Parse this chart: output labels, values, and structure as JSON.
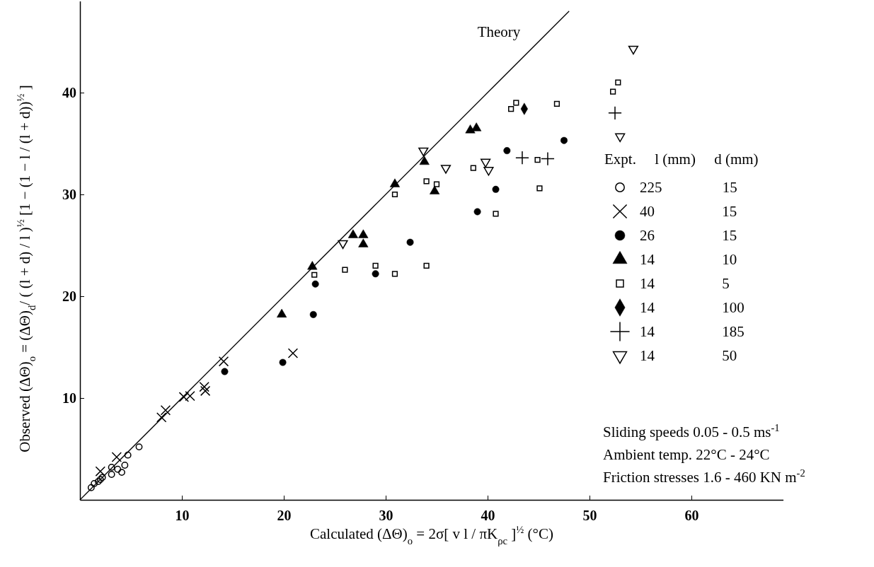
{
  "chart_data": {
    "type": "scatter",
    "xlabel": "Calculated (ΔΘ)$_{o}$  =  2σ[ v l / πK$_{ρc}$ ]$^{½}$ (°C)",
    "ylabel": "Observed (ΔΘ)$_{o}$  =  (ΔΘ)$_{d}$/ ( (l + d) / l )$^{½}$ [1 − (1 − l / (l + d))$^{½}$ ]",
    "xlim": [
      0,
      69
    ],
    "ylim": [
      0,
      49
    ],
    "xticks": [
      10,
      20,
      30,
      40,
      50,
      60
    ],
    "yticks": [
      10,
      20,
      30,
      40
    ],
    "grid": false,
    "legend": "right",
    "legend_title": "Expt.     l (mm)     d (mm)",
    "annotations": [
      "Theory",
      "Sliding speeds 0.05 - 0.5 ms$^{-1}$",
      "Ambient temp. 22°C - 24°C",
      "Friction stresses 1.6 - 460 KN m$^{-2}$"
    ],
    "series": [
      {
        "name": "225 15",
        "color": "#000000",
        "marker": "circle-open",
        "x": [
          1.1,
          1.4,
          1.8,
          2.0,
          2.2,
          3.1,
          3.1,
          3.7,
          4.1,
          4.4,
          4.7,
          5.8
        ],
        "values": [
          1.2,
          1.6,
          1.8,
          2.0,
          2.2,
          2.5,
          3.2,
          3.0,
          2.7,
          3.4,
          4.4,
          5.2
        ]
      },
      {
        "name": "40 15",
        "color": "#000000",
        "marker": "cross",
        "x": [
          2.0,
          3.6,
          8.0,
          8.4,
          10.2,
          10.8,
          12.2,
          12.3,
          14.1,
          20.9
        ],
        "values": [
          2.8,
          4.2,
          8.1,
          8.8,
          10.1,
          10.2,
          11.1,
          10.7,
          13.6,
          14.4
        ]
      },
      {
        "name": "26 15",
        "color": "#000000",
        "marker": "circle",
        "x": [
          14.2,
          19.9,
          22.9,
          23.1,
          29.0,
          32.4,
          39.0,
          40.8,
          41.9,
          47.5
        ],
        "values": [
          12.6,
          13.5,
          18.2,
          21.2,
          22.2,
          25.3,
          28.3,
          30.5,
          34.3,
          35.3
        ]
      },
      {
        "name": "14 10",
        "color": "#000000",
        "marker": "triangle",
        "x": [
          19.8,
          22.8,
          26.8,
          27.8,
          27.8,
          30.9,
          33.8,
          34.8,
          38.3,
          38.9
        ],
        "values": [
          18.2,
          22.9,
          26.0,
          26.0,
          25.1,
          31.0,
          33.2,
          30.3,
          36.3,
          36.5
        ]
      },
      {
        "name": "14 5",
        "color": "#000000",
        "marker": "square-open",
        "x": [
          23.0,
          26.0,
          29.0,
          30.9,
          30.9,
          34.0,
          34.0,
          35.0,
          38.6,
          40.8,
          42.3,
          42.8,
          44.9,
          45.1,
          46.8,
          52.3,
          52.8
        ],
        "values": [
          22.1,
          22.6,
          23.0,
          22.2,
          30.0,
          23.0,
          31.3,
          31.0,
          32.6,
          28.1,
          38.4,
          39.0,
          33.4,
          30.6,
          38.9,
          40.1,
          41.0
        ]
      },
      {
        "name": "14 100",
        "color": "#000000",
        "marker": "diamond",
        "x": [
          43.6
        ],
        "values": [
          38.4
        ]
      },
      {
        "name": "14 185",
        "color": "#000000",
        "marker": "plus",
        "x": [
          43.4,
          45.9,
          52.5
        ],
        "values": [
          33.6,
          33.5,
          38.0
        ]
      },
      {
        "name": "14 50",
        "color": "#000000",
        "marker": "triangle-down-open",
        "x": [
          25.8,
          33.7,
          35.9,
          39.8,
          40.1,
          53.0,
          54.3
        ],
        "values": [
          25.2,
          34.3,
          32.6,
          33.2,
          32.4,
          35.7,
          44.3
        ]
      },
      {
        "type": "line",
        "color": "#000000",
        "line_style": "solid",
        "marker": "none",
        "x": [
          0,
          48
        ],
        "values": [
          0,
          48
        ]
      }
    ]
  }
}
